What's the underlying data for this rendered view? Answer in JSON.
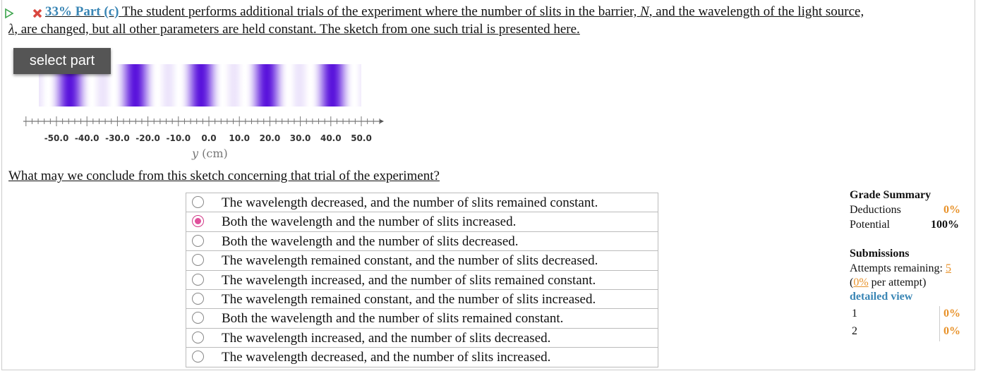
{
  "header": {
    "percent": "33%",
    "part": "Part (c)",
    "text_1": "The student performs additional trials of the experiment where the number of slits in the barrier, ",
    "var_1": "N",
    "text_2": ", and the wavelength of the light source,",
    "var_2": "λ",
    "text_3": ", are changed, but all other parameters are held constant. The sketch from one such trial is presented here."
  },
  "select_part": "select part",
  "figure": {
    "tick_labels": [
      "-50.0",
      "-40.0",
      "-30.0",
      "-20.0",
      "-10.0",
      "0.0",
      "10.0",
      "20.0",
      "30.0",
      "40.0",
      "50.0"
    ],
    "axis_var": "y",
    "axis_unit": "(cm)"
  },
  "question": "What may we conclude from this sketch concerning that trial of the experiment?",
  "options": [
    "The wavelength decreased, and the number of slits remained constant.",
    "Both the wavelength and the number of slits increased.",
    "Both the wavelength and the number of slits decreased.",
    "The wavelength remained constant, and the number of slits decreased.",
    "The wavelength increased, and the number of slits remained constant.",
    "The wavelength remained constant, and the number of slits increased.",
    "Both the wavelength and the number of slits remained constant.",
    "The wavelength increased, and the number of slits decreased.",
    "The wavelength decreased, and the number of slits increased."
  ],
  "selected": 1,
  "grade_summary": {
    "title": "Grade Summary",
    "deductions_label": "Deductions",
    "deductions_value": "0%",
    "potential_label": "Potential",
    "potential_value": "100%"
  },
  "submissions": {
    "title": "Submissions",
    "attempts_label": "Attempts remaining:",
    "attempts_value": "5",
    "open_paren": "(",
    "per_attempt_value": "0%",
    "per_attempt_label": "per attempt)",
    "detailed_view": "detailed view",
    "rows": [
      [
        "1",
        "0%"
      ],
      [
        "2",
        "0%"
      ]
    ]
  }
}
